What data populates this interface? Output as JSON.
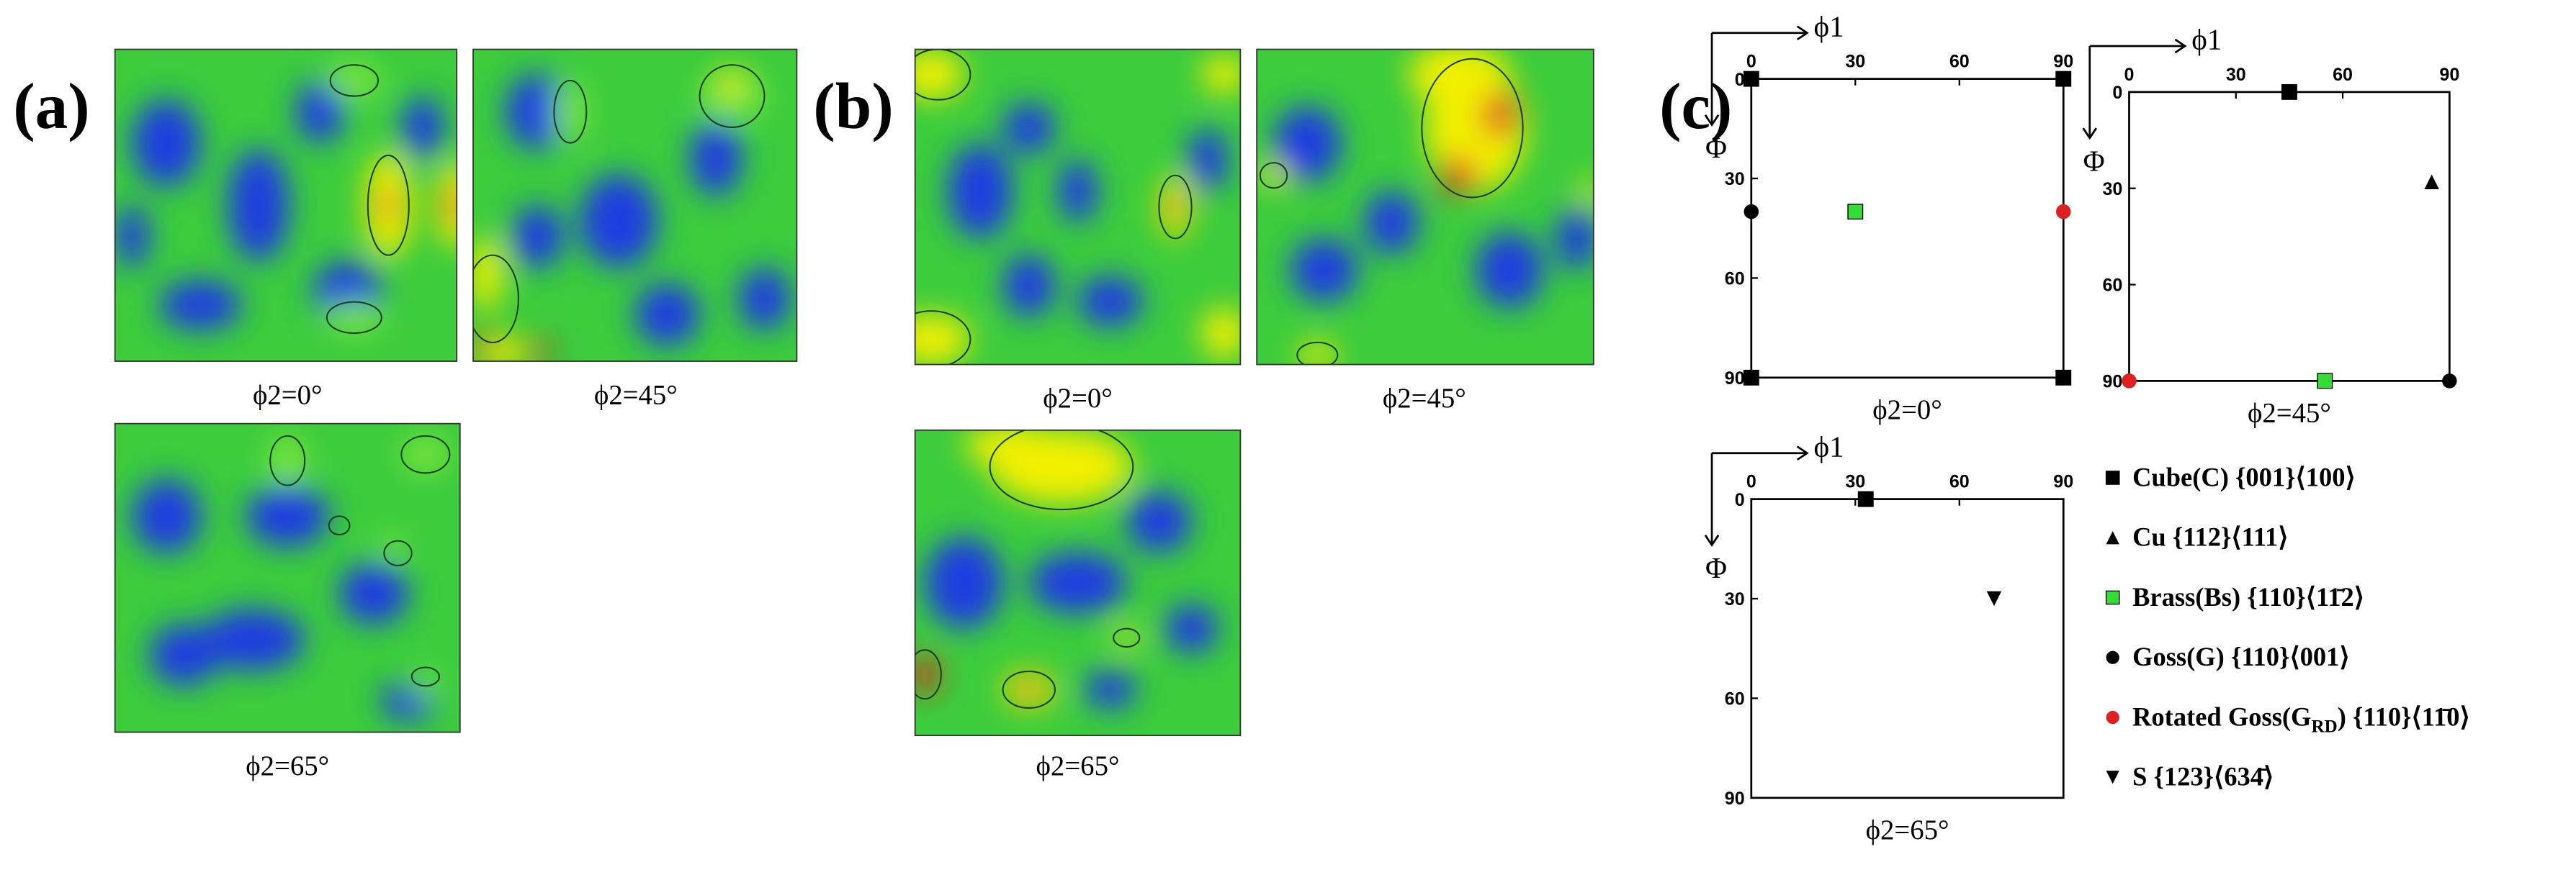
{
  "panels": [
    {
      "label": "(a)",
      "captions": [
        "ϕ2=0°",
        "ϕ2=45°",
        "ϕ2=65°"
      ]
    },
    {
      "label": "(b)",
      "captions": [
        "ϕ2=0°",
        "ϕ2=45°",
        "ϕ2=65°"
      ]
    },
    {
      "label": "(c)"
    }
  ],
  "chart_data": [
    {
      "type": "scatter",
      "x_label": "ϕ1",
      "y_label": "Φ",
      "caption": "ϕ2=0°",
      "y_inverted": true,
      "xlim": [
        0,
        90
      ],
      "ylim": [
        0,
        90
      ],
      "xticks": [
        0,
        30,
        60,
        90
      ],
      "yticks": [
        0,
        30,
        60,
        90
      ],
      "series": [
        {
          "marker": "square",
          "color": "#000000",
          "x": [
            0,
            90,
            0,
            90
          ],
          "y": [
            0,
            0,
            90,
            90
          ]
        },
        {
          "marker": "square",
          "color": "#33dd33",
          "x": [
            30
          ],
          "y": [
            40
          ]
        },
        {
          "marker": "circle",
          "color": "#000000",
          "x": [
            0
          ],
          "y": [
            40
          ]
        },
        {
          "marker": "circle",
          "color": "#e02020",
          "x": [
            90
          ],
          "y": [
            40
          ]
        }
      ]
    },
    {
      "type": "scatter",
      "x_label": "ϕ1",
      "y_label": "Φ",
      "caption": "ϕ2=45°",
      "y_inverted": true,
      "xlim": [
        0,
        90
      ],
      "ylim": [
        0,
        90
      ],
      "xticks": [
        0,
        30,
        60,
        90
      ],
      "yticks": [
        0,
        30,
        60,
        90
      ],
      "series": [
        {
          "marker": "square",
          "color": "#000000",
          "x": [
            45
          ],
          "y": [
            0
          ]
        },
        {
          "marker": "triangle-up",
          "color": "#000000",
          "x": [
            85
          ],
          "y": [
            28
          ]
        },
        {
          "marker": "square",
          "color": "#33dd33",
          "x": [
            55
          ],
          "y": [
            90
          ]
        },
        {
          "marker": "circle",
          "color": "#000000",
          "x": [
            90
          ],
          "y": [
            90
          ]
        },
        {
          "marker": "circle",
          "color": "#e02020",
          "x": [
            0
          ],
          "y": [
            90
          ]
        }
      ]
    },
    {
      "type": "scatter",
      "x_label": "ϕ1",
      "y_label": "Φ",
      "caption": "ϕ2=65°",
      "y_inverted": true,
      "xlim": [
        0,
        90
      ],
      "ylim": [
        0,
        90
      ],
      "xticks": [
        0,
        30,
        60,
        90
      ],
      "yticks": [
        0,
        30,
        60,
        90
      ],
      "series": [
        {
          "marker": "square",
          "color": "#000000",
          "x": [
            33
          ],
          "y": [
            0
          ]
        },
        {
          "marker": "triangle-down",
          "color": "#000000",
          "x": [
            70
          ],
          "y": [
            30
          ]
        }
      ]
    }
  ],
  "legend": [
    {
      "name": "Cube(C) {001}⟨100⟩",
      "marker": "square",
      "color": "#000000"
    },
    {
      "name": "Cu {112}⟨111⟩",
      "marker": "triangle-up",
      "color": "#000000"
    },
    {
      "name": "Brass(Bs) {110}⟨11̄2⟩",
      "marker": "square",
      "color": "#33dd33"
    },
    {
      "name": "Goss(G) {110}⟨001⟩",
      "marker": "circle",
      "color": "#000000"
    },
    {
      "name": [
        "Rotated Goss(G",
        "RD",
        ") {110}⟨11̄0⟩"
      ],
      "marker": "circle",
      "color": "#e02020"
    },
    {
      "name": "S {123}⟨634̄⟩",
      "marker": "triangle-down",
      "color": "#000000"
    }
  ]
}
